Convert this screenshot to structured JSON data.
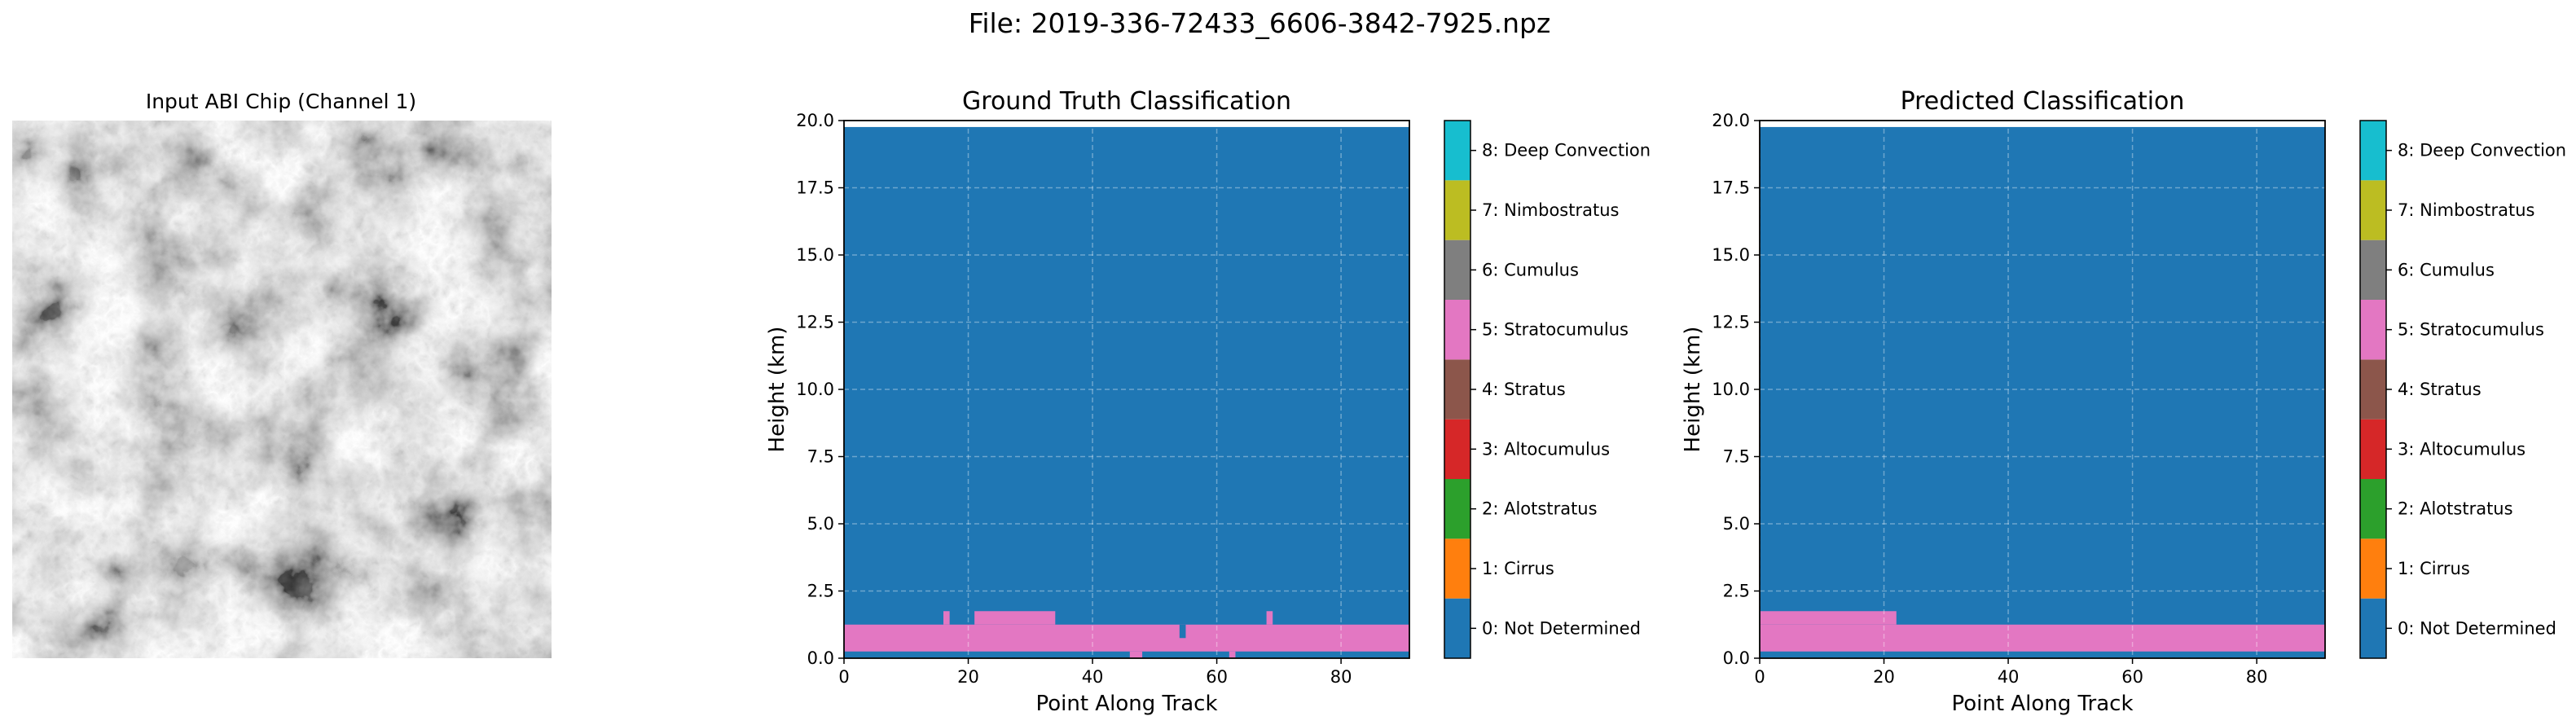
{
  "figure": {
    "suptitle": "File: 2019-336-72433_6606-3842-7925.npz"
  },
  "input_panel": {
    "title": "Input ABI Chip (Channel 1)",
    "image_description_name": "abi-satellite-grayscale-chip"
  },
  "classes": [
    {
      "id": 0,
      "label": "0: Not Determined",
      "color": "#1f77b4"
    },
    {
      "id": 1,
      "label": "1: Cirrus",
      "color": "#ff7f0e"
    },
    {
      "id": 2,
      "label": "2: Alotstratus",
      "color": "#2ca02c"
    },
    {
      "id": 3,
      "label": "3: Altocumulus",
      "color": "#d62728"
    },
    {
      "id": 4,
      "label": "4: Stratus",
      "color": "#8c564b"
    },
    {
      "id": 5,
      "label": "5: Stratocumulus",
      "color": "#e377c2"
    },
    {
      "id": 6,
      "label": "6: Cumulus",
      "color": "#7f7f7f"
    },
    {
      "id": 7,
      "label": "7: Nimbostratus",
      "color": "#bcbd22"
    },
    {
      "id": 8,
      "label": "8: Deep Convection",
      "color": "#17becf"
    }
  ],
  "chart_data": [
    {
      "type": "heatmap",
      "title": "Ground Truth Classification",
      "xlabel": "Point Along Track",
      "ylabel": "Height (km)",
      "xlim": [
        0,
        91
      ],
      "ylim": [
        0,
        20
      ],
      "xticks": [
        0,
        20,
        40,
        60,
        80
      ],
      "yticks": [
        "0.0",
        "2.5",
        "5.0",
        "7.5",
        "10.0",
        "12.5",
        "15.0",
        "17.5",
        "20.0"
      ],
      "grid": true,
      "data_top_km": 19.76,
      "background_class": 0,
      "class_regions": [
        {
          "class": 5,
          "x": [
            0,
            91
          ],
          "y": [
            0.25,
            1.25
          ]
        },
        {
          "class": 5,
          "x": [
            16,
            17
          ],
          "y": [
            1.25,
            1.75
          ]
        },
        {
          "class": 5,
          "x": [
            21,
            34
          ],
          "y": [
            1.25,
            1.75
          ]
        },
        {
          "class": 5,
          "x": [
            46,
            48
          ],
          "y": [
            0.0,
            0.25
          ]
        },
        {
          "class": 0,
          "x": [
            54,
            55
          ],
          "y": [
            0.75,
            1.25
          ]
        },
        {
          "class": 5,
          "x": [
            62,
            63
          ],
          "y": [
            0.0,
            0.25
          ]
        },
        {
          "class": 5,
          "x": [
            68,
            69
          ],
          "y": [
            1.25,
            1.75
          ]
        }
      ]
    },
    {
      "type": "heatmap",
      "title": "Predicted Classification",
      "xlabel": "Point Along Track",
      "ylabel": "Height (km)",
      "xlim": [
        0,
        91
      ],
      "ylim": [
        0,
        20
      ],
      "xticks": [
        0,
        20,
        40,
        60,
        80
      ],
      "yticks": [
        "0.0",
        "2.5",
        "5.0",
        "7.5",
        "10.0",
        "12.5",
        "15.0",
        "17.5",
        "20.0"
      ],
      "grid": true,
      "data_top_km": 19.76,
      "background_class": 0,
      "class_regions": [
        {
          "class": 5,
          "x": [
            0,
            91
          ],
          "y": [
            0.25,
            1.25
          ]
        },
        {
          "class": 5,
          "x": [
            0,
            22
          ],
          "y": [
            1.25,
            1.75
          ]
        }
      ]
    }
  ]
}
